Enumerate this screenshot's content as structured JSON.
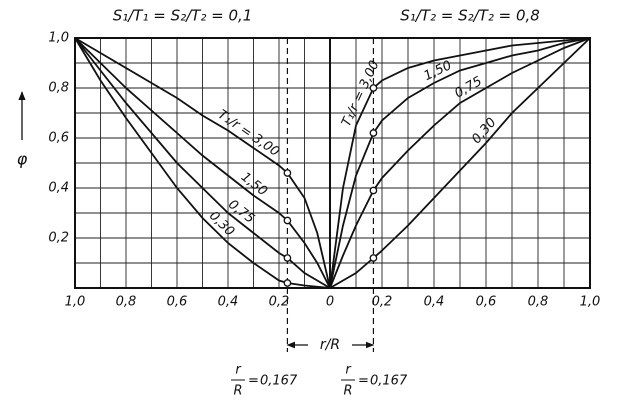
{
  "y_label": "φ",
  "x_label": "r/R",
  "fraction": {
    "numerator": "r",
    "denominator": "R",
    "relation": "="
  },
  "chart_data": [
    {
      "type": "line",
      "title": "S₁/T₁ = S₂/T₂ = 0,1",
      "xlim": [
        1,
        0
      ],
      "ylim": [
        0,
        1
      ],
      "xticks": [
        {
          "value": 1,
          "label": "1,0"
        },
        {
          "value": 0.8,
          "label": "0,8"
        },
        {
          "value": 0.6,
          "label": "0,6"
        },
        {
          "value": 0.4,
          "label": "0,4"
        },
        {
          "value": 0.2,
          "label": "0,2"
        }
      ],
      "yticks": [
        {
          "value": 0.2,
          "label": "0,2"
        },
        {
          "value": 0.4,
          "label": "0,4"
        },
        {
          "value": 0.6,
          "label": "0,6"
        },
        {
          "value": 0.8,
          "label": "0,8"
        },
        {
          "value": 1,
          "label": "1,0"
        }
      ],
      "grid": true,
      "marker_x": {
        "value": 0.167,
        "label": "0,167"
      },
      "x": [
        0,
        0.05,
        0.1,
        0.167,
        0.2,
        0.3,
        0.4,
        0.5,
        0.6,
        0.7,
        0.8,
        0.9,
        1
      ],
      "series": [
        {
          "name": "T₁/r = 3,00",
          "color": "#111111",
          "values": [
            0,
            0.22,
            0.36,
            0.46,
            0.49,
            0.56,
            0.63,
            0.69,
            0.76,
            0.82,
            0.88,
            0.94,
            1
          ]
        },
        {
          "name": "1,50",
          "color": "#111111",
          "values": [
            0,
            0.1,
            0.18,
            0.27,
            0.3,
            0.37,
            0.45,
            0.53,
            0.62,
            0.71,
            0.8,
            0.9,
            1
          ]
        },
        {
          "name": "0,75",
          "color": "#111111",
          "values": [
            0,
            0.03,
            0.06,
            0.12,
            0.14,
            0.22,
            0.3,
            0.4,
            0.5,
            0.62,
            0.74,
            0.87,
            1
          ]
        },
        {
          "name": "0,30",
          "color": "#111111",
          "values": [
            0,
            0.005,
            0.01,
            0.02,
            0.03,
            0.1,
            0.18,
            0.28,
            0.4,
            0.54,
            0.68,
            0.83,
            1
          ]
        }
      ]
    },
    {
      "type": "line",
      "title": "S₁/T₂ = S₂/T₂ = 0,8",
      "xlim": [
        0,
        1
      ],
      "ylim": [
        0,
        1
      ],
      "xticks": [
        0,
        {
          "value": 0.2,
          "label": "0,2"
        },
        {
          "value": 0.4,
          "label": "0,4"
        },
        {
          "value": 0.6,
          "label": "0,6"
        },
        {
          "value": 0.8,
          "label": "0,8"
        },
        {
          "value": 1,
          "label": "1,0"
        }
      ],
      "grid": true,
      "marker_x": {
        "value": 0.167,
        "label": "0,167"
      },
      "x": [
        0,
        0.05,
        0.1,
        0.167,
        0.2,
        0.3,
        0.4,
        0.5,
        0.6,
        0.7,
        0.8,
        0.9,
        1
      ],
      "series": [
        {
          "name": "T₁/r = 3,00",
          "color": "#111111",
          "values": [
            0,
            0.4,
            0.65,
            0.8,
            0.83,
            0.88,
            0.91,
            0.93,
            0.95,
            0.97,
            0.98,
            0.99,
            1
          ]
        },
        {
          "name": "1,50",
          "color": "#111111",
          "values": [
            0,
            0.25,
            0.45,
            0.62,
            0.67,
            0.76,
            0.82,
            0.87,
            0.9,
            0.93,
            0.95,
            0.98,
            1
          ]
        },
        {
          "name": "0,75",
          "color": "#111111",
          "values": [
            0,
            0.13,
            0.25,
            0.39,
            0.44,
            0.55,
            0.65,
            0.74,
            0.8,
            0.86,
            0.91,
            0.96,
            1
          ]
        },
        {
          "name": "0,30",
          "color": "#111111",
          "values": [
            0,
            0.03,
            0.06,
            0.12,
            0.15,
            0.25,
            0.36,
            0.47,
            0.58,
            0.7,
            0.8,
            0.9,
            1
          ]
        }
      ]
    }
  ]
}
